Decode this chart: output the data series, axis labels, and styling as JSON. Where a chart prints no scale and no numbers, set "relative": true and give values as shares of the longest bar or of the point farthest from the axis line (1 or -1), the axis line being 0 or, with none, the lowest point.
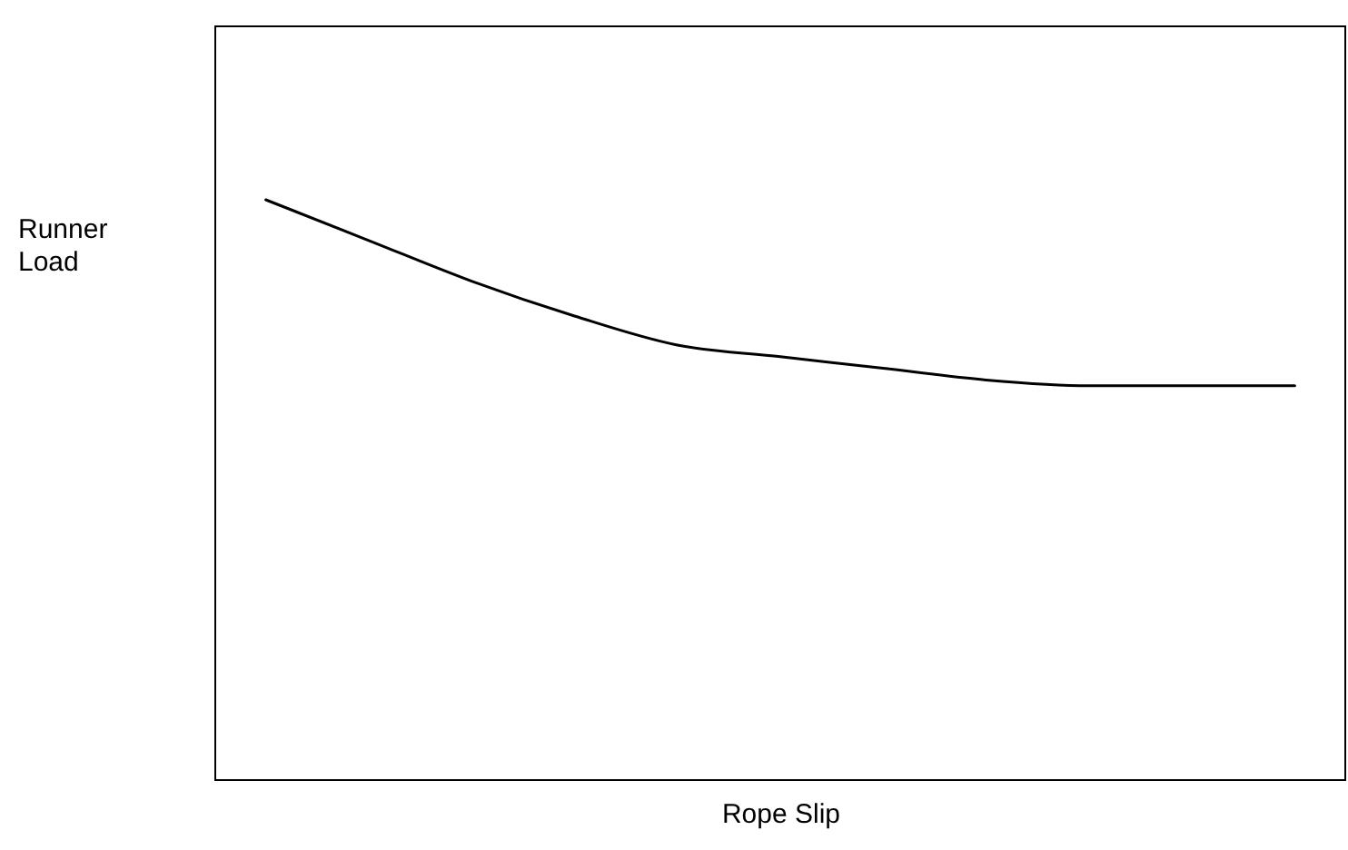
{
  "chart_data": {
    "type": "line",
    "relative": true,
    "xlabel": "Rope Slip",
    "ylabel": "Runner Load",
    "categories": [
      null,
      null,
      null,
      null,
      null,
      null,
      null,
      null,
      null,
      null,
      null
    ],
    "series": [
      {
        "color": "#000000",
        "values": [
          1,
          0.93,
          0.86,
          0.8,
          0.75,
          0.73,
          0.71,
          0.69,
          0.68,
          0.68,
          0.68
        ]
      }
    ],
    "legend": false,
    "marker": "none",
    "line_style": "solid"
  }
}
